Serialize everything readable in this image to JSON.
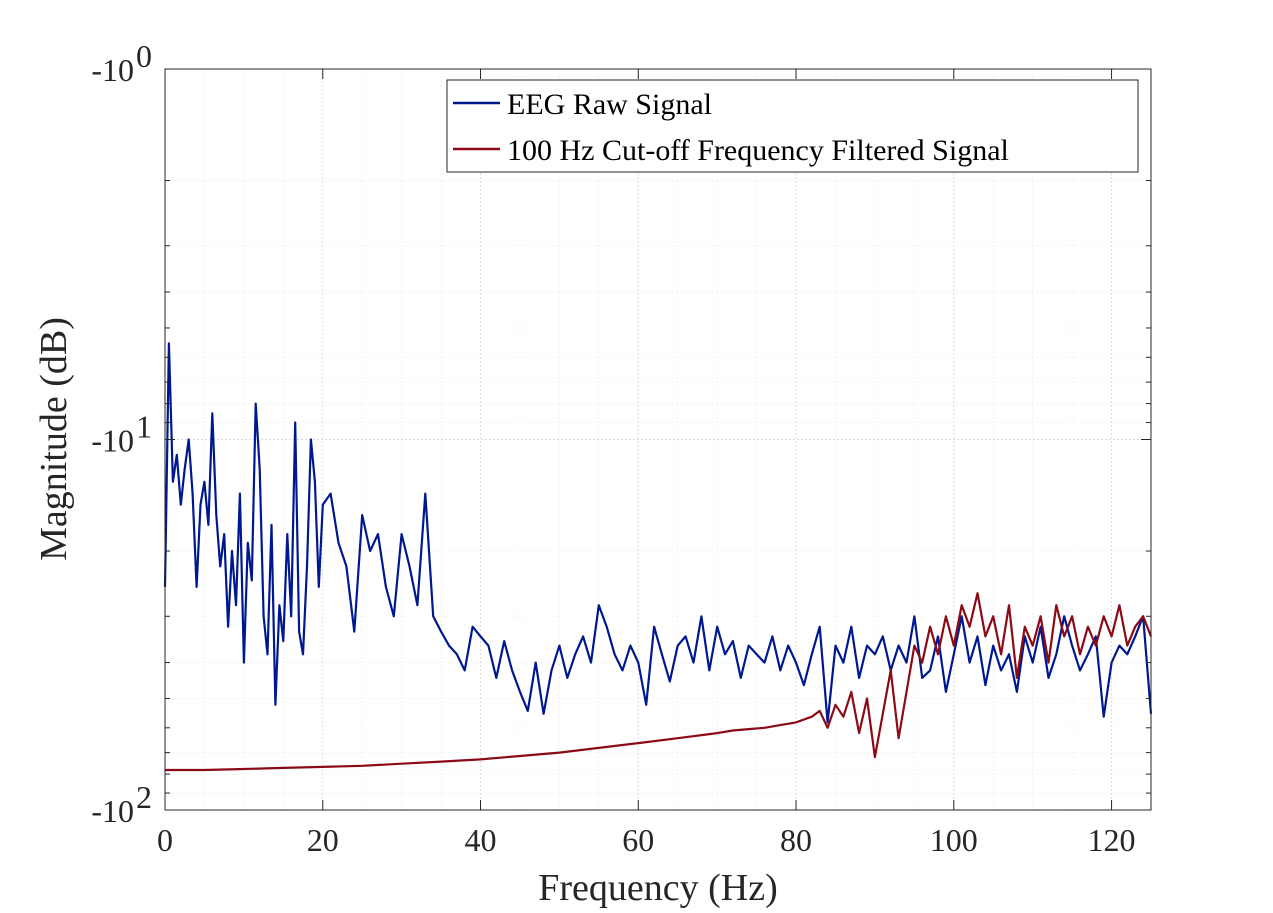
{
  "chart_data": {
    "type": "line",
    "title": "",
    "xlabel": "Frequency (Hz)",
    "ylabel": "Magnitude (dB)",
    "xlim": [
      0,
      125
    ],
    "ylim_magnitude_log": [
      1,
      100
    ],
    "y_axis": "reversed log scale of magnitude, labelled as negative powers of ten",
    "grid": "on (major and minor, dotted)",
    "legend_position": "top-right",
    "x_ticks": [
      "0",
      "20",
      "40",
      "60",
      "80",
      "100",
      "120"
    ],
    "y_ticks": [
      {
        "base": "-10",
        "exp": "0",
        "value": 1
      },
      {
        "base": "-10",
        "exp": "1",
        "value": 10
      },
      {
        "base": "-10",
        "exp": "2",
        "value": 100
      }
    ],
    "colors": {
      "raw": "#00188f",
      "filtered": "#8b0a16"
    },
    "series": [
      {
        "name": "EEG Raw Signal",
        "color": "#00188f",
        "x": [
          0,
          0.5,
          1,
          1.5,
          2,
          2.5,
          3,
          3.5,
          4,
          4.5,
          5,
          5.5,
          6,
          6.5,
          7,
          7.5,
          8,
          8.5,
          9,
          9.5,
          10,
          10.5,
          11,
          11.5,
          12,
          12.5,
          13,
          13.5,
          14,
          14.5,
          15,
          15.5,
          16,
          16.5,
          17,
          17.5,
          18,
          18.5,
          19,
          19.5,
          20,
          21,
          22,
          23,
          24,
          25,
          26,
          27,
          28,
          29,
          30,
          31,
          32,
          33,
          34,
          35,
          36,
          37,
          38,
          39,
          40,
          41,
          42,
          43,
          44,
          45,
          46,
          47,
          48,
          49,
          50,
          51,
          52,
          53,
          54,
          55,
          56,
          57,
          58,
          59,
          60,
          61,
          62,
          63,
          64,
          65,
          66,
          67,
          68,
          69,
          70,
          71,
          72,
          73,
          74,
          75,
          76,
          77,
          78,
          79,
          80,
          81,
          82,
          83,
          84,
          85,
          86,
          87,
          88,
          89,
          90,
          91,
          92,
          93,
          94,
          95,
          96,
          97,
          98,
          99,
          100,
          101,
          102,
          103,
          104,
          105,
          106,
          107,
          108,
          109,
          110,
          111,
          112,
          113,
          114,
          115,
          116,
          117,
          118,
          119,
          120,
          121,
          122,
          123,
          124,
          125
        ],
        "values": [
          25,
          5.5,
          13,
          11,
          15,
          12,
          10,
          14,
          25,
          15,
          13,
          17,
          8.5,
          16,
          22,
          18,
          32,
          20,
          28,
          14,
          40,
          19,
          24,
          8,
          12,
          30,
          38,
          17,
          52,
          28,
          35,
          18,
          30,
          9,
          33,
          38,
          22,
          10,
          13,
          25,
          15,
          14,
          19,
          22,
          33,
          16,
          20,
          18,
          25,
          30,
          18,
          22,
          28,
          14,
          30,
          33,
          36,
          38,
          42,
          32,
          34,
          36,
          44,
          35,
          42,
          48,
          54,
          40,
          55,
          42,
          36,
          44,
          38,
          34,
          40,
          28,
          32,
          38,
          42,
          36,
          40,
          52,
          32,
          38,
          45,
          36,
          34,
          40,
          30,
          42,
          32,
          38,
          35,
          44,
          36,
          38,
          40,
          34,
          42,
          36,
          40,
          46,
          38,
          32,
          58,
          36,
          40,
          32,
          44,
          36,
          38,
          34,
          42,
          36,
          40,
          30,
          44,
          42,
          34,
          48,
          38,
          30,
          40,
          34,
          46,
          36,
          42,
          38,
          48,
          34,
          40,
          32,
          44,
          38,
          30,
          36,
          42,
          38,
          34,
          56,
          40,
          36,
          38,
          34,
          30,
          55
        ]
      },
      {
        "name": "100 Hz Cut-off Frequency Filtered Signal",
        "color": "#8b0a16",
        "x": [
          0,
          5,
          10,
          15,
          20,
          25,
          30,
          35,
          40,
          45,
          50,
          55,
          60,
          65,
          70,
          72,
          74,
          76,
          78,
          80,
          82,
          83,
          84,
          85,
          86,
          87,
          88,
          89,
          90,
          91,
          92,
          93,
          94,
          95,
          96,
          97,
          98,
          99,
          100,
          101,
          102,
          103,
          104,
          105,
          106,
          107,
          108,
          109,
          110,
          111,
          112,
          113,
          114,
          115,
          116,
          117,
          118,
          119,
          120,
          121,
          122,
          123,
          124,
          125
        ],
        "values": [
          78,
          78,
          77.5,
          77,
          76.5,
          76,
          75,
          74,
          73,
          71.5,
          70,
          68,
          66,
          64,
          62,
          61,
          60.5,
          60,
          59,
          58,
          56,
          54,
          60,
          52,
          56,
          48,
          62,
          50,
          72,
          55,
          42,
          64,
          48,
          36,
          40,
          32,
          38,
          30,
          36,
          28,
          32,
          26,
          34,
          30,
          38,
          28,
          44,
          32,
          36,
          30,
          40,
          28,
          34,
          30,
          38,
          32,
          36,
          30,
          34,
          28,
          36,
          32,
          30,
          34
        ]
      }
    ]
  }
}
